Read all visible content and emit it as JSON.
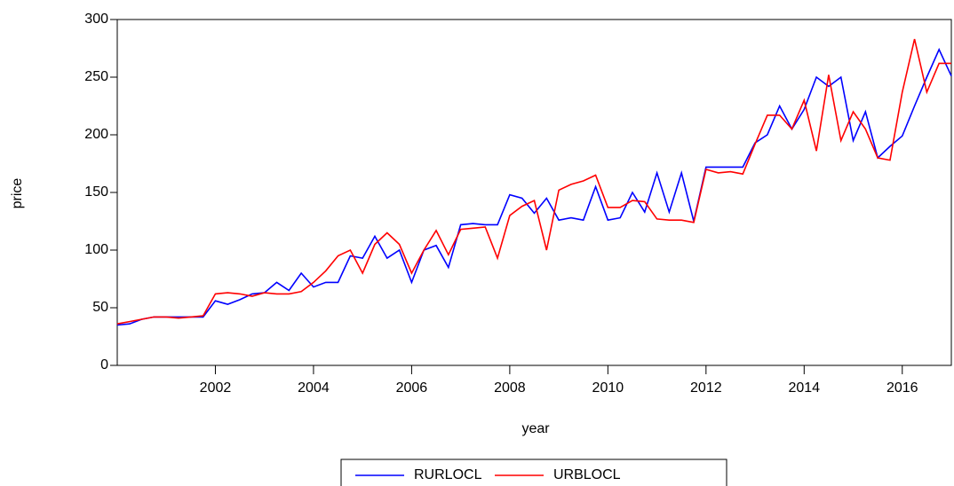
{
  "chart_data": {
    "type": "line",
    "x_label": "year",
    "y_label": "price",
    "x": [
      2000,
      2000.25,
      2000.5,
      2000.75,
      2001,
      2001.25,
      2001.5,
      2001.75,
      2002,
      2002.25,
      2002.5,
      2002.75,
      2003,
      2003.25,
      2003.5,
      2003.75,
      2004,
      2004.25,
      2004.5,
      2004.75,
      2005,
      2005.25,
      2005.5,
      2005.75,
      2006,
      2006.25,
      2006.5,
      2006.75,
      2007,
      2007.25,
      2007.5,
      2007.75,
      2008,
      2008.25,
      2008.5,
      2008.75,
      2009,
      2009.25,
      2009.5,
      2009.75,
      2010,
      2010.25,
      2010.5,
      2010.75,
      2011,
      2011.25,
      2011.5,
      2011.75,
      2012,
      2012.25,
      2012.5,
      2012.75,
      2013,
      2013.25,
      2013.5,
      2013.75,
      2014,
      2014.25,
      2014.5,
      2014.75,
      2015,
      2015.25,
      2015.5,
      2015.75,
      2016,
      2016.25,
      2016.5,
      2016.75,
      2017
    ],
    "series": [
      {
        "name": "RURLOCL",
        "color": "#0000ff",
        "values": [
          35,
          36,
          40,
          42,
          42,
          42,
          42,
          42,
          56,
          53,
          57,
          62,
          63,
          72,
          65,
          80,
          68,
          72,
          72,
          95,
          93,
          112,
          93,
          100,
          72,
          100,
          104,
          85,
          122,
          123,
          122,
          122,
          148,
          145,
          132,
          145,
          126,
          128,
          126,
          155,
          126,
          128,
          150,
          133,
          167,
          133,
          167,
          125,
          172,
          172,
          172,
          172,
          193,
          200,
          225,
          205,
          222,
          250,
          242,
          250,
          195,
          220,
          180,
          190,
          199,
          225,
          250,
          274,
          251
        ]
      },
      {
        "name": "URBLOCL",
        "color": "#ff0000",
        "values": [
          36,
          38,
          40,
          42,
          42,
          41,
          42,
          43,
          62,
          63,
          62,
          60,
          63,
          62,
          62,
          64,
          72,
          82,
          95,
          100,
          80,
          105,
          115,
          105,
          80,
          100,
          117,
          96,
          118,
          119,
          120,
          93,
          130,
          138,
          143,
          100,
          152,
          157,
          160,
          165,
          137,
          137,
          143,
          142,
          127,
          126,
          126,
          124,
          170,
          167,
          168,
          166,
          192,
          217,
          217,
          205,
          230,
          186,
          252,
          195,
          220,
          205,
          180,
          178,
          237,
          283,
          237,
          262,
          262
        ]
      }
    ],
    "xlim": [
      2000,
      2017
    ],
    "xticks": [
      2002,
      2004,
      2006,
      2008,
      2010,
      2012,
      2014,
      2016
    ],
    "ylim": [
      0,
      300
    ],
    "yticks": [
      0,
      50,
      100,
      150,
      200,
      250,
      300
    ]
  }
}
